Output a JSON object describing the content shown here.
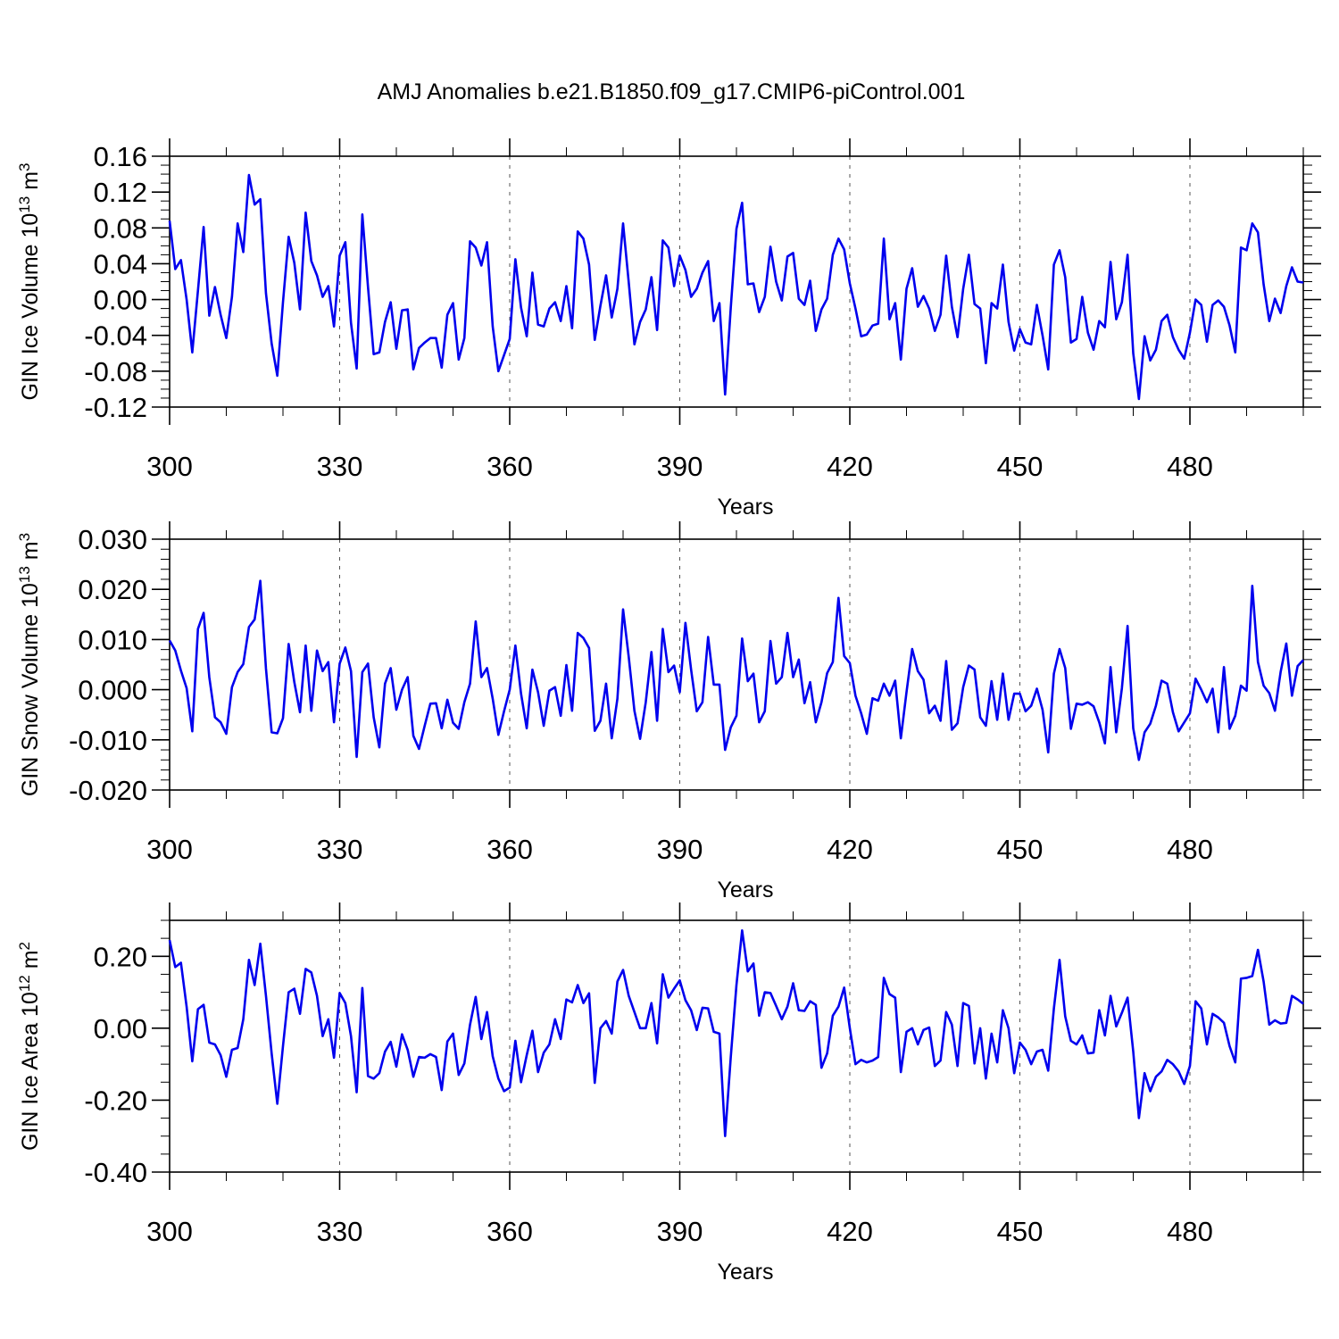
{
  "title": "AMJ Anomalies b.e21.B1850.f09_g17.CMIP6-piControl.001",
  "chart_data": [
    {
      "type": "line",
      "ylabel": "GIN Ice Volume 10",
      "ylabel_sup": "13",
      "ylabel_unit": " m",
      "ylabel_unit_sup": "3",
      "xlabel": "Years",
      "xlim": [
        300,
        500
      ],
      "ylim": [
        -0.12,
        0.16
      ],
      "x_ticks": [
        300,
        330,
        360,
        390,
        420,
        450,
        480
      ],
      "x_tick_labels": [
        "300",
        "330",
        "360",
        "390",
        "420",
        "450",
        "480"
      ],
      "y_ticks": [
        -0.12,
        -0.08,
        -0.04,
        0.0,
        0.04,
        0.08,
        0.12,
        0.16
      ],
      "y_tick_labels": [
        "-0.12",
        "-0.08",
        "-0.04",
        "0.00",
        "0.04",
        "0.08",
        "0.12",
        "0.16"
      ],
      "y_minor_step": 0.01,
      "color": "#0000ee",
      "grid": "vertical dashed at major x ticks",
      "x_start": 300,
      "values": [
        0.088,
        0.034,
        0.044,
        0.0,
        -0.059,
        0.01,
        0.081,
        -0.018,
        0.014,
        -0.017,
        -0.043,
        0.003,
        0.085,
        0.053,
        0.139,
        0.106,
        0.112,
        0.007,
        -0.049,
        -0.085,
        -0.003,
        0.07,
        0.041,
        -0.011,
        0.097,
        0.043,
        0.027,
        0.003,
        0.015,
        -0.03,
        0.049,
        0.064,
        -0.026,
        -0.077,
        0.095,
        0.014,
        -0.061,
        -0.059,
        -0.025,
        -0.003,
        -0.055,
        -0.012,
        -0.011,
        -0.078,
        -0.054,
        -0.048,
        -0.043,
        -0.043,
        -0.076,
        -0.017,
        -0.004,
        -0.067,
        -0.043,
        0.065,
        0.058,
        0.038,
        0.064,
        -0.03,
        -0.08,
        -0.062,
        -0.044,
        0.045,
        -0.009,
        -0.041,
        0.03,
        -0.028,
        -0.03,
        -0.01,
        -0.003,
        -0.024,
        0.015,
        -0.032,
        0.076,
        0.068,
        0.039,
        -0.045,
        -0.007,
        0.027,
        -0.02,
        0.012,
        0.085,
        0.019,
        -0.05,
        -0.025,
        -0.011,
        0.025,
        -0.034,
        0.066,
        0.058,
        0.015,
        0.049,
        0.033,
        0.003,
        0.012,
        0.03,
        0.043,
        -0.024,
        -0.004,
        -0.106,
        -0.009,
        0.079,
        0.108,
        0.017,
        0.018,
        -0.014,
        0.003,
        0.059,
        0.02,
        -0.001,
        0.048,
        0.052,
        0.001,
        -0.006,
        0.021,
        -0.035,
        -0.011,
        0.001,
        0.05,
        0.068,
        0.056,
        0.018,
        -0.01,
        -0.041,
        -0.039,
        -0.029,
        -0.027,
        0.068,
        -0.022,
        -0.004,
        -0.067,
        0.012,
        0.035,
        -0.008,
        0.004,
        -0.01,
        -0.035,
        -0.017,
        0.049,
        -0.008,
        -0.042,
        0.012,
        0.05,
        -0.005,
        -0.01,
        -0.071,
        -0.004,
        -0.01,
        0.039,
        -0.025,
        -0.057,
        -0.033,
        -0.048,
        -0.05,
        -0.006,
        -0.04,
        -0.078,
        0.039,
        0.055,
        0.025,
        -0.048,
        -0.044,
        0.003,
        -0.037,
        -0.056,
        -0.024,
        -0.031,
        0.042,
        -0.022,
        -0.003,
        0.05,
        -0.06,
        -0.111,
        -0.041,
        -0.068,
        -0.056,
        -0.024,
        -0.017,
        -0.042,
        -0.056,
        -0.066,
        -0.037,
        0.0,
        -0.006,
        -0.047,
        -0.006,
        -0.001,
        -0.008,
        -0.029,
        -0.059,
        0.058,
        0.055,
        0.085,
        0.075,
        0.017,
        -0.024,
        0.001,
        -0.015,
        0.015,
        0.036,
        0.02,
        0.019
      ]
    },
    {
      "type": "line",
      "ylabel": "GIN Snow Volume 10",
      "ylabel_sup": "13",
      "ylabel_unit": " m",
      "ylabel_unit_sup": "3",
      "xlabel": "Years",
      "xlim": [
        300,
        500
      ],
      "ylim": [
        -0.02,
        0.03
      ],
      "x_ticks": [
        300,
        330,
        360,
        390,
        420,
        450,
        480
      ],
      "x_tick_labels": [
        "300",
        "330",
        "360",
        "390",
        "420",
        "450",
        "480"
      ],
      "y_ticks": [
        -0.02,
        -0.01,
        0.0,
        0.01,
        0.02,
        0.03
      ],
      "y_tick_labels": [
        "-0.020",
        "-0.010",
        "0.000",
        "0.010",
        "0.020",
        "0.030"
      ],
      "y_minor_step": 0.002,
      "color": "#0000ee",
      "grid": "vertical dashed at major x ticks",
      "x_start": 300,
      "values": [
        0.0098,
        0.0078,
        0.0038,
        0.0003,
        -0.0083,
        0.0121,
        0.0153,
        0.0025,
        -0.0055,
        -0.0065,
        -0.0088,
        0.0005,
        0.0035,
        0.0051,
        0.0125,
        0.014,
        0.0217,
        0.0042,
        -0.0085,
        -0.0087,
        -0.0057,
        0.0091,
        0.0015,
        -0.0045,
        0.0088,
        -0.0042,
        0.0078,
        0.0037,
        0.0055,
        -0.0065,
        0.0052,
        0.0084,
        0.0037,
        -0.0134,
        0.0035,
        0.0052,
        -0.0055,
        -0.0115,
        0.0012,
        0.0043,
        -0.004,
        0.0,
        0.0025,
        -0.0092,
        -0.0118,
        -0.0072,
        -0.0028,
        -0.0027,
        -0.0077,
        -0.002,
        -0.0066,
        -0.0078,
        -0.0025,
        0.0012,
        0.0136,
        0.0025,
        0.0043,
        -0.0018,
        -0.009,
        -0.0043,
        0.0,
        0.0088,
        -0.0008,
        -0.0077,
        0.004,
        -0.0005,
        -0.0072,
        -0.0002,
        0.0005,
        -0.0052,
        0.0049,
        -0.0042,
        0.0113,
        0.0103,
        0.0083,
        -0.0082,
        -0.0062,
        0.0012,
        -0.0097,
        -0.0018,
        0.016,
        0.0065,
        -0.0042,
        -0.0098,
        -0.0025,
        0.0075,
        -0.0062,
        0.0121,
        0.0035,
        0.0048,
        -0.0005,
        0.0133,
        0.004,
        -0.0043,
        -0.0025,
        0.0105,
        0.001,
        0.001,
        -0.012,
        -0.0075,
        -0.0052,
        0.0102,
        0.0017,
        0.0032,
        -0.0065,
        -0.0043,
        0.0097,
        0.0012,
        0.0025,
        0.0113,
        0.0025,
        0.006,
        -0.0027,
        0.0015,
        -0.0065,
        -0.0025,
        0.0033,
        0.0055,
        0.0183,
        0.0067,
        0.0053,
        -0.0012,
        -0.0047,
        -0.0088,
        -0.0017,
        -0.0022,
        0.0012,
        -0.0012,
        0.0018,
        -0.0097,
        -0.0005,
        0.0081,
        0.0037,
        0.002,
        -0.0047,
        -0.0032,
        -0.0062,
        0.0057,
        -0.008,
        -0.0067,
        0.0005,
        0.0048,
        0.004,
        -0.0055,
        -0.0072,
        0.0017,
        -0.006,
        0.0032,
        -0.006,
        -0.0008,
        -0.0008,
        -0.0043,
        -0.0032,
        0.0002,
        -0.004,
        -0.0125,
        0.0032,
        0.0081,
        0.0043,
        -0.0078,
        -0.0028,
        -0.003,
        -0.0025,
        -0.0033,
        -0.0065,
        -0.0107,
        0.0045,
        -0.0085,
        0.0003,
        0.0127,
        -0.0077,
        -0.014,
        -0.0085,
        -0.0068,
        -0.0032,
        0.0018,
        0.0012,
        -0.0045,
        -0.0083,
        -0.0065,
        -0.0047,
        0.0022,
        0.0,
        -0.0025,
        0.0002,
        -0.0085,
        0.0045,
        -0.0078,
        -0.0052,
        0.0008,
        -0.0002,
        0.0207,
        0.0055,
        0.0008,
        -0.0007,
        -0.0042,
        0.0035,
        0.0092,
        -0.0012,
        0.0047,
        0.0059
      ]
    },
    {
      "type": "line",
      "ylabel": "GIN Ice Area 10",
      "ylabel_sup": "12",
      "ylabel_unit": " m",
      "ylabel_unit_sup": "2",
      "xlabel": "Years",
      "xlim": [
        300,
        500
      ],
      "ylim": [
        -0.4,
        0.3
      ],
      "x_ticks": [
        300,
        330,
        360,
        390,
        420,
        450,
        480
      ],
      "x_tick_labels": [
        "300",
        "330",
        "360",
        "390",
        "420",
        "450",
        "480"
      ],
      "y_ticks": [
        -0.4,
        -0.2,
        0.0,
        0.2
      ],
      "y_tick_labels": [
        "-0.40",
        "-0.20",
        "0.00",
        "0.20"
      ],
      "y_minor_step": 0.05,
      "color": "#0000ee",
      "grid": "vertical dashed at major x ticks",
      "x_start": 300,
      "values": [
        0.245,
        0.17,
        0.182,
        0.06,
        -0.092,
        0.053,
        0.065,
        -0.04,
        -0.045,
        -0.075,
        -0.135,
        -0.06,
        -0.055,
        0.025,
        0.19,
        0.12,
        0.235,
        0.09,
        -0.07,
        -0.21,
        -0.05,
        0.1,
        0.11,
        0.04,
        0.165,
        0.155,
        0.09,
        -0.022,
        0.025,
        -0.082,
        0.098,
        0.07,
        -0.022,
        -0.178,
        0.112,
        -0.133,
        -0.14,
        -0.125,
        -0.065,
        -0.038,
        -0.107,
        -0.017,
        -0.06,
        -0.135,
        -0.08,
        -0.082,
        -0.072,
        -0.08,
        -0.172,
        -0.037,
        -0.015,
        -0.13,
        -0.098,
        0.01,
        0.087,
        -0.03,
        0.045,
        -0.078,
        -0.14,
        -0.175,
        -0.165,
        -0.035,
        -0.15,
        -0.075,
        -0.007,
        -0.122,
        -0.068,
        -0.045,
        0.025,
        -0.03,
        0.08,
        0.072,
        0.12,
        0.07,
        0.097,
        -0.152,
        0.0,
        0.02,
        -0.015,
        0.13,
        0.162,
        0.09,
        0.045,
        0.0,
        0.0,
        0.07,
        -0.042,
        0.15,
        0.085,
        0.11,
        0.133,
        0.078,
        0.05,
        -0.005,
        0.057,
        0.055,
        -0.01,
        -0.015,
        -0.3,
        -0.08,
        0.12,
        0.272,
        0.158,
        0.18,
        0.035,
        0.1,
        0.098,
        0.062,
        0.025,
        0.06,
        0.125,
        0.05,
        0.048,
        0.075,
        0.065,
        -0.11,
        -0.07,
        0.035,
        0.06,
        0.113,
        0.0,
        -0.1,
        -0.088,
        -0.095,
        -0.09,
        -0.08,
        0.14,
        0.095,
        0.085,
        -0.122,
        -0.01,
        0.0,
        -0.045,
        -0.005,
        0.002,
        -0.105,
        -0.09,
        0.045,
        0.01,
        -0.105,
        0.07,
        0.062,
        -0.098,
        0.0,
        -0.14,
        -0.015,
        -0.095,
        0.05,
        0.0,
        -0.125,
        -0.04,
        -0.06,
        -0.1,
        -0.065,
        -0.06,
        -0.118,
        0.055,
        0.19,
        0.033,
        -0.035,
        -0.045,
        -0.02,
        -0.07,
        -0.068,
        0.05,
        -0.02,
        0.09,
        0.005,
        0.043,
        0.085,
        -0.065,
        -0.25,
        -0.125,
        -0.175,
        -0.135,
        -0.12,
        -0.088,
        -0.1,
        -0.12,
        -0.155,
        -0.105,
        0.075,
        0.055,
        -0.045,
        0.04,
        0.03,
        0.015,
        -0.05,
        -0.095,
        0.138,
        0.14,
        0.145,
        0.218,
        0.13,
        0.01,
        0.022,
        0.013,
        0.015,
        0.09,
        0.08,
        0.068
      ]
    }
  ]
}
